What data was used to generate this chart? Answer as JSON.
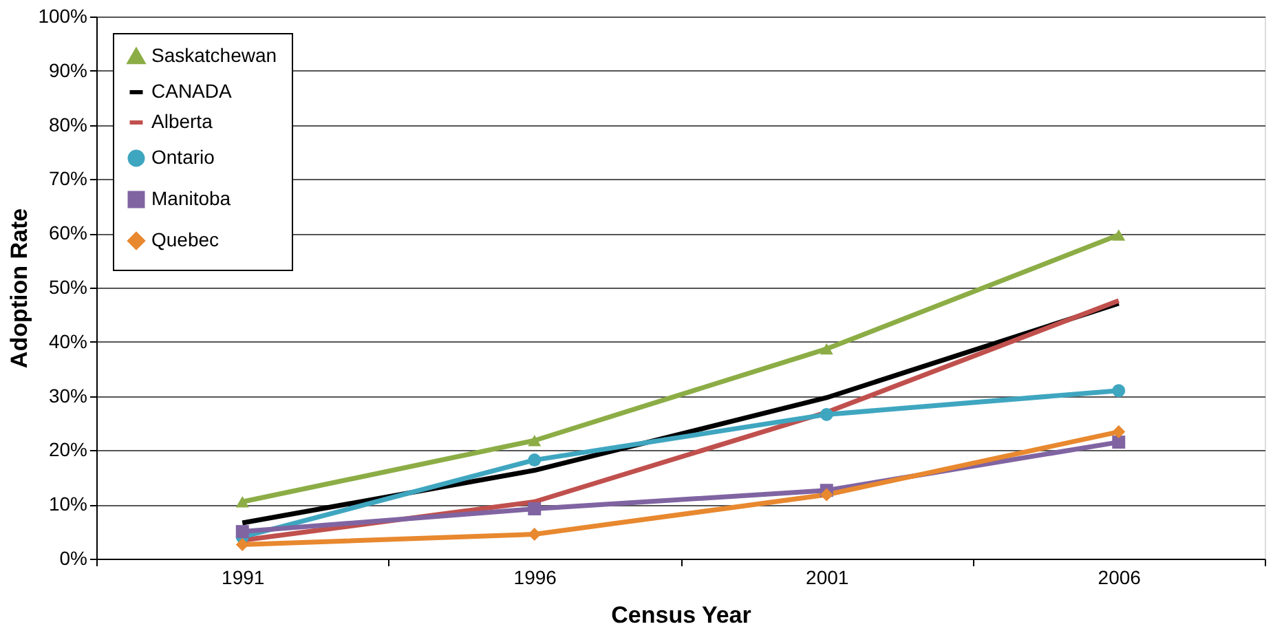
{
  "chart_data": {
    "type": "line",
    "xlabel": "Census Year",
    "ylabel": "Adoption Rate",
    "categories": [
      "1991",
      "1996",
      "2001",
      "2006"
    ],
    "ylim": [
      0,
      100
    ],
    "yticks": [
      {
        "value": 0,
        "label": "0%"
      },
      {
        "value": 10,
        "label": "10%"
      },
      {
        "value": 20,
        "label": "20%"
      },
      {
        "value": 30,
        "label": "30%"
      },
      {
        "value": 40,
        "label": "40%"
      },
      {
        "value": 50,
        "label": "50%"
      },
      {
        "value": 60,
        "label": "60%"
      },
      {
        "value": 70,
        "label": "70%"
      },
      {
        "value": 80,
        "label": "80%"
      },
      {
        "value": 90,
        "label": "90%"
      },
      {
        "value": 100,
        "label": "100%"
      }
    ],
    "grid": "y",
    "legend": "top left",
    "series": [
      {
        "name": "Saskatchewan",
        "color": "#8cad45",
        "marker": "triangle",
        "values": [
          10.5,
          21.8,
          38.7,
          59.7
        ]
      },
      {
        "name": "CANADA",
        "color": "#000000",
        "marker": "none",
        "values": [
          6.6,
          16.3,
          29.7,
          47.1
        ]
      },
      {
        "name": "Alberta",
        "color": "#c0504d",
        "marker": "none",
        "values": [
          3.4,
          10.5,
          27.0,
          47.6
        ]
      },
      {
        "name": "Ontario",
        "color": "#3fa6c0",
        "marker": "circle",
        "values": [
          4.0,
          18.2,
          26.6,
          31.0
        ]
      },
      {
        "name": "Manitoba",
        "color": "#8064a2",
        "marker": "square",
        "values": [
          5.0,
          9.2,
          12.6,
          21.5
        ]
      },
      {
        "name": "Quebec",
        "color": "#e8882f",
        "marker": "diamond",
        "values": [
          2.6,
          4.5,
          11.8,
          23.4
        ]
      }
    ]
  }
}
